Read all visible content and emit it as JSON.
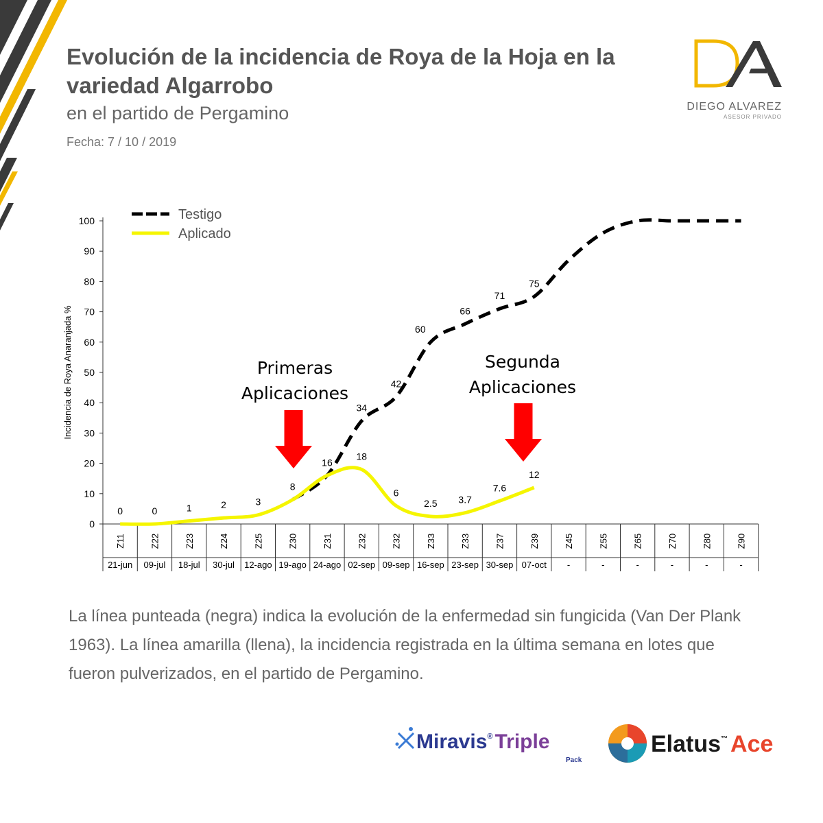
{
  "header": {
    "title": "Evolución de la incidencia de Roya de la Hoja en la variedad Algarrobo",
    "subtitle": "en el partido de Pergamino",
    "date": "Fecha: 7 / 10 / 2019"
  },
  "logo": {
    "name": "DIEGO ALVAREZ",
    "tagline": "ASESOR PRIVADO"
  },
  "chart_data": {
    "type": "line",
    "ylabel": "Incidencia de Roya Anaranjada %",
    "ylim": [
      0,
      100
    ],
    "yticks": [
      0,
      10,
      20,
      30,
      40,
      50,
      60,
      70,
      80,
      90,
      100
    ],
    "categories": [
      "Z11",
      "Z22",
      "Z23",
      "Z24",
      "Z25",
      "Z30",
      "Z31",
      "Z32",
      "Z32",
      "Z33",
      "Z33",
      "Z37",
      "Z39",
      "Z45",
      "Z55",
      "Z65",
      "Z70",
      "Z80",
      "Z90"
    ],
    "dates": [
      "21-jun",
      "09-jul",
      "18-jul",
      "30-jul",
      "12-ago",
      "19-ago",
      "24-ago",
      "02-sep",
      "09-sep",
      "16-sep",
      "23-sep",
      "30-sep",
      "07-oct",
      "-",
      "-",
      "-",
      "-",
      "-",
      "-"
    ],
    "series": [
      {
        "name": "Testigo",
        "style": "dashed",
        "color": "#000000",
        "values": [
          null,
          null,
          null,
          null,
          null,
          8,
          16,
          34,
          42,
          60,
          66,
          71,
          75,
          87,
          96,
          100,
          100,
          100,
          100
        ]
      },
      {
        "name": "Aplicado",
        "style": "solid",
        "color": "#f5f500",
        "values": [
          0,
          0,
          1,
          2,
          3,
          8,
          16,
          18,
          6,
          2.5,
          3.7,
          7.6,
          12,
          null,
          null,
          null,
          null,
          null,
          null
        ]
      }
    ],
    "data_labels": [
      {
        "i": 0,
        "text": "0"
      },
      {
        "i": 1,
        "text": "0"
      },
      {
        "i": 2,
        "text": "1"
      },
      {
        "i": 3,
        "text": "2"
      },
      {
        "i": 4,
        "text": "3"
      },
      {
        "i": 5,
        "text": "8"
      },
      {
        "i": 6,
        "text": "16"
      },
      {
        "i": 7,
        "text": "34"
      },
      {
        "i": 7,
        "text": "18"
      },
      {
        "i": 8,
        "text": "42"
      },
      {
        "i": 8,
        "text": "6"
      },
      {
        "i": 9,
        "text": "60"
      },
      {
        "i": 9,
        "text": "2.5"
      },
      {
        "i": 10,
        "text": "66"
      },
      {
        "i": 10,
        "text": "3.7"
      },
      {
        "i": 11,
        "text": "71"
      },
      {
        "i": 11,
        "text": "7.6"
      },
      {
        "i": 12,
        "text": "75"
      },
      {
        "i": 12,
        "text": "12"
      }
    ],
    "annotations": [
      {
        "lines": [
          "Primeras",
          "Aplicaciones"
        ],
        "category_index": 5,
        "arrow_color": "#ff0000"
      },
      {
        "lines": [
          "Segunda",
          "Aplicaciones"
        ],
        "category_index": 12,
        "arrow_color": "#ff0000"
      }
    ],
    "grid": false,
    "legend_position": "top-left"
  },
  "caption": "La línea punteada (negra) indica la evolución de la enfermedad sin fungicida (Van Der Plank 1963). La línea amarilla (llena), la incidencia registrada en la última semana en lotes que fueron pulverizados, en el partido de Pergamino.",
  "brands": {
    "miravis": {
      "name": "Miravis",
      "reg": "®",
      "suffix": "Triple",
      "sub": "Pack",
      "color_name": "#2b3990",
      "color_suffix": "#7b3f98"
    },
    "elatus": {
      "name": "Elatus",
      "tm": "™",
      "suffix": "Ace",
      "color_name": "#1a1a1a",
      "color_suffix": "#e8452c"
    }
  }
}
